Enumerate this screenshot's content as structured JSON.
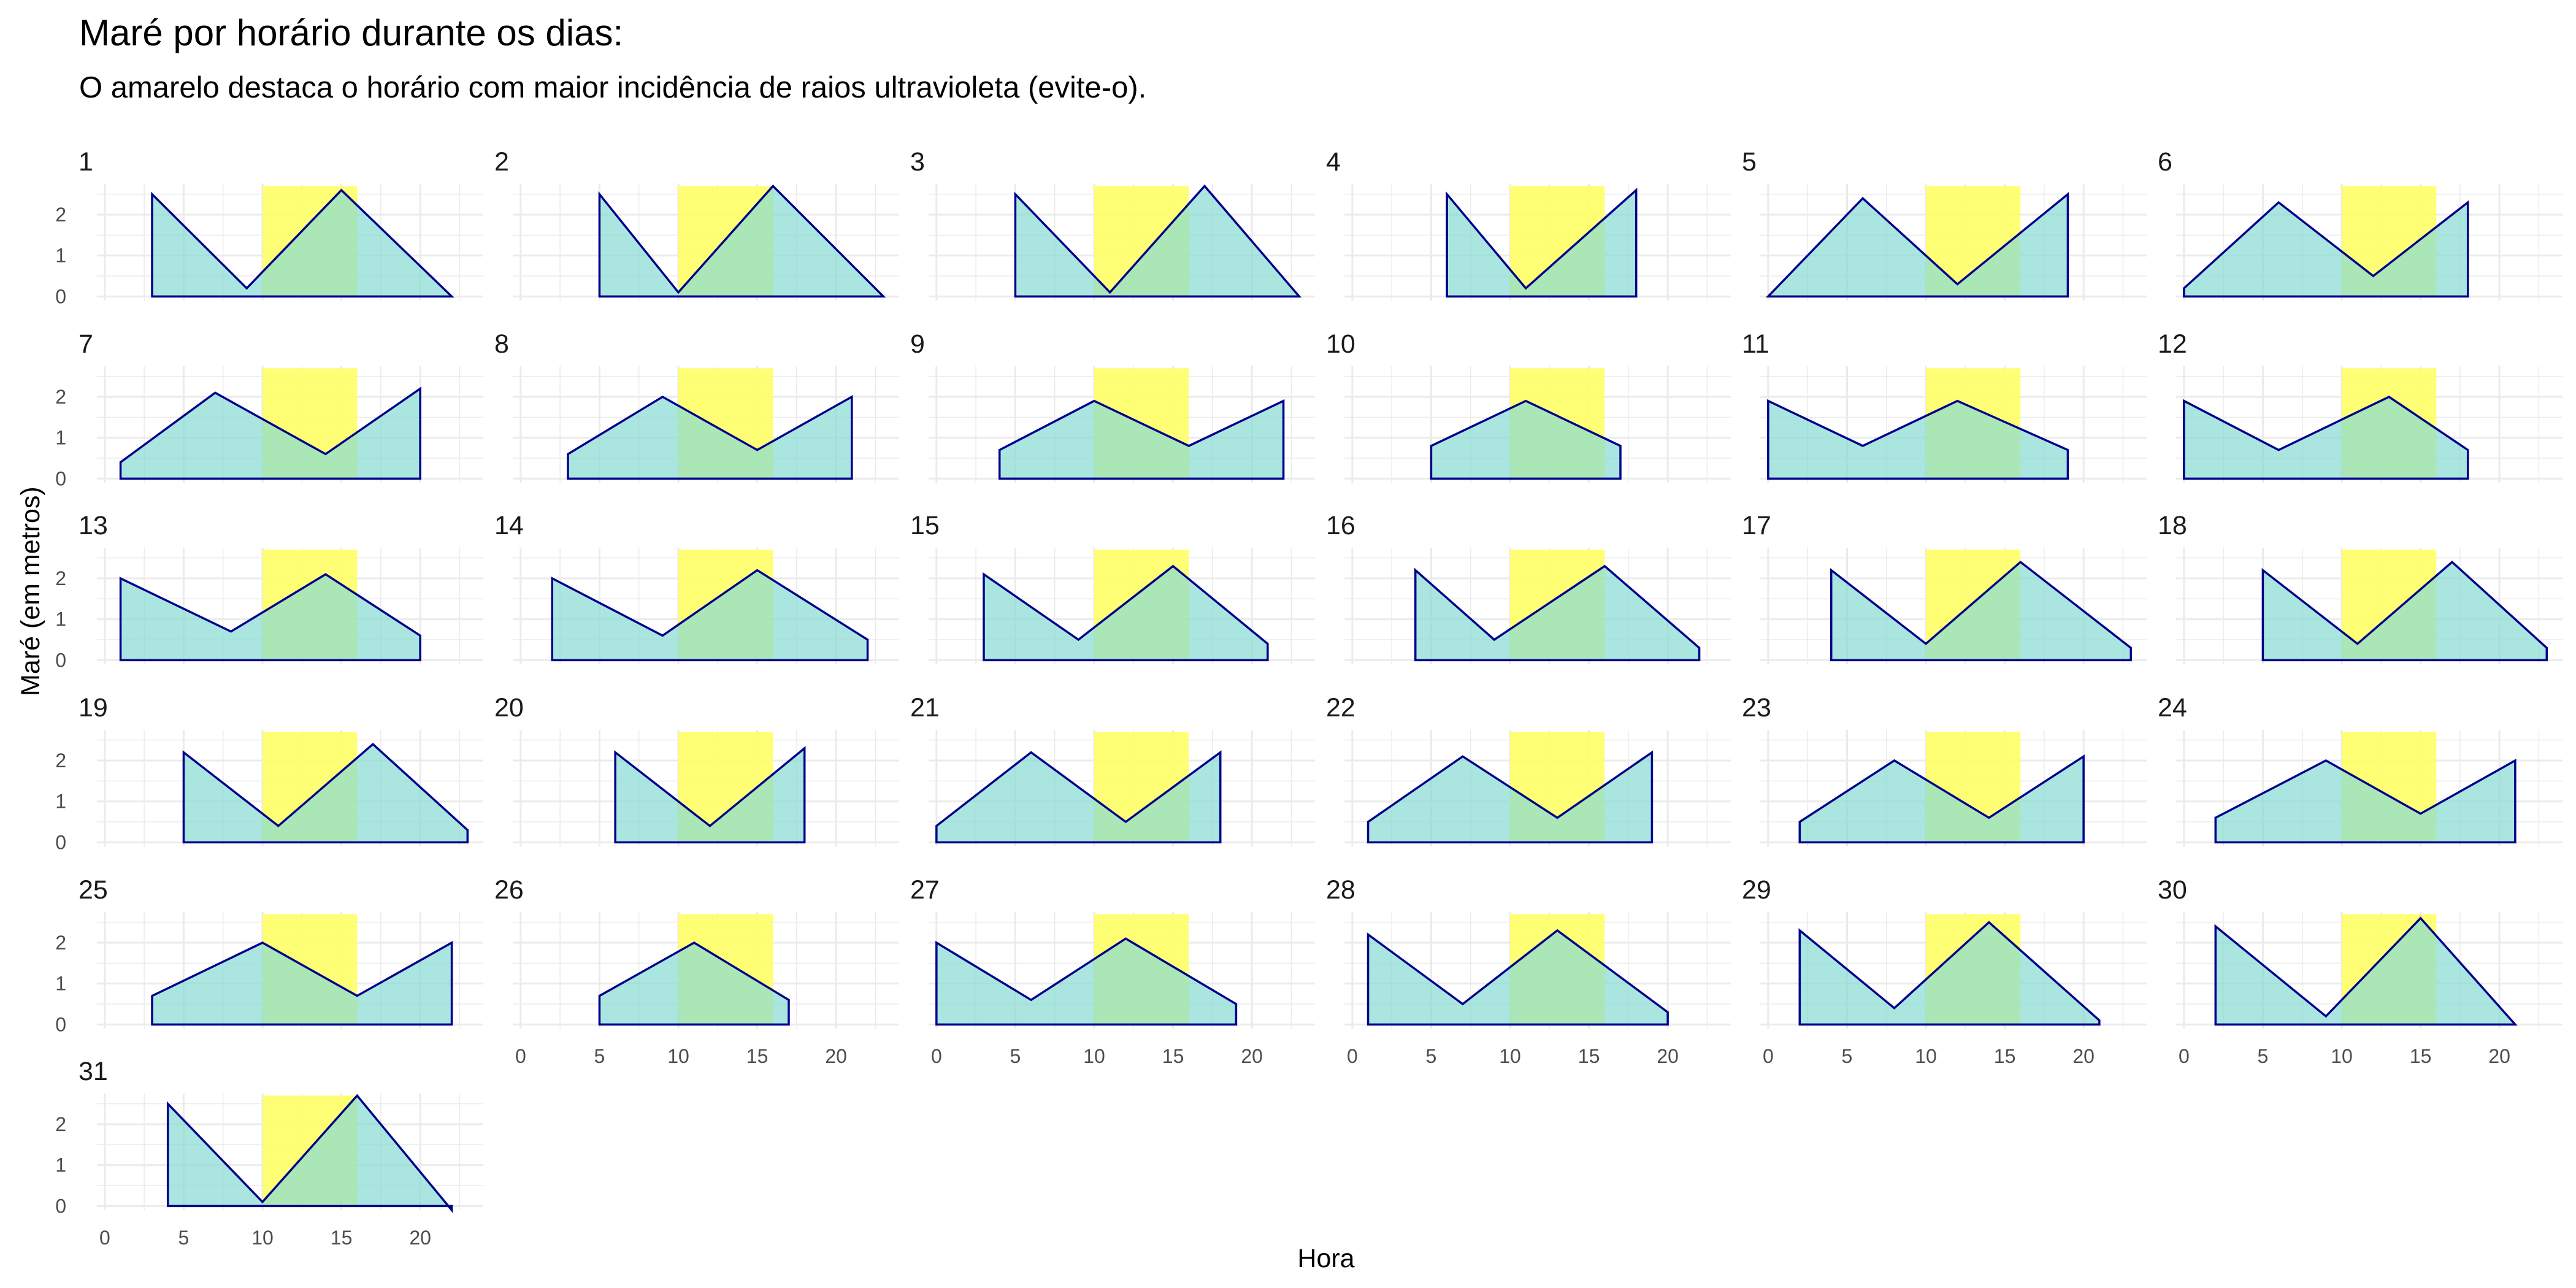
{
  "title": "Maré por horário durante os dias:",
  "subtitle": "O amarelo destaca o horário com maior incidência de raios ultravioleta (evite-o).",
  "colors": {
    "highlight": "#ffff66",
    "tide_fill": "#86dcd2",
    "tide_line": "#00008b",
    "grid": "#ebebeb"
  },
  "chart_data": {
    "type": "area",
    "facet_by": "day",
    "xlabel": "Hora",
    "ylabel": "Maré (em metros)",
    "xlim": [
      -0.5,
      24
    ],
    "ylim": [
      -0.1,
      2.75
    ],
    "x_ticks": [
      0,
      5,
      10,
      15,
      20
    ],
    "y_ticks": [
      0,
      1,
      2
    ],
    "highlight_band": {
      "from": 10,
      "to": 16
    },
    "panels": [
      {
        "day": "1",
        "x": [
          3,
          9,
          15,
          22
        ],
        "y": [
          2.5,
          0.2,
          2.6,
          0
        ]
      },
      {
        "day": "2",
        "x": [
          5,
          10,
          16,
          23
        ],
        "y": [
          2.5,
          0.1,
          2.7,
          0
        ]
      },
      {
        "day": "3",
        "x": [
          5,
          11,
          17,
          23
        ],
        "y": [
          2.5,
          0.1,
          2.7,
          0
        ]
      },
      {
        "day": "4",
        "x": [
          6,
          11,
          18
        ],
        "y": [
          2.5,
          0.2,
          2.6
        ]
      },
      {
        "day": "5",
        "x": [
          0,
          6,
          12,
          19
        ],
        "y": [
          0,
          2.4,
          0.3,
          2.5
        ]
      },
      {
        "day": "6",
        "x": [
          0,
          6,
          12,
          18
        ],
        "y": [
          0.2,
          2.3,
          0.5,
          2.3
        ]
      },
      {
        "day": "7",
        "x": [
          1,
          7,
          14,
          20
        ],
        "y": [
          0.4,
          2.1,
          0.6,
          2.2
        ]
      },
      {
        "day": "8",
        "x": [
          3,
          9,
          15,
          21
        ],
        "y": [
          0.6,
          2.0,
          0.7,
          2.0
        ]
      },
      {
        "day": "9",
        "x": [
          4,
          10,
          16,
          22
        ],
        "y": [
          0.7,
          1.9,
          0.8,
          1.9
        ]
      },
      {
        "day": "10",
        "x": [
          5,
          11,
          17
        ],
        "y": [
          0.8,
          1.9,
          0.8
        ]
      },
      {
        "day": "11",
        "x": [
          0,
          6,
          12,
          19
        ],
        "y": [
          1.9,
          0.8,
          1.9,
          0.7
        ]
      },
      {
        "day": "12",
        "x": [
          0,
          6,
          13,
          18
        ],
        "y": [
          1.9,
          0.7,
          2.0,
          0.7
        ]
      },
      {
        "day": "13",
        "x": [
          1,
          8,
          14,
          20
        ],
        "y": [
          2.0,
          0.7,
          2.1,
          0.6
        ]
      },
      {
        "day": "14",
        "x": [
          2,
          9,
          15,
          22
        ],
        "y": [
          2.0,
          0.6,
          2.2,
          0.5
        ]
      },
      {
        "day": "15",
        "x": [
          3,
          9,
          15,
          21
        ],
        "y": [
          2.1,
          0.5,
          2.3,
          0.4
        ]
      },
      {
        "day": "16",
        "x": [
          4,
          9,
          16,
          22
        ],
        "y": [
          2.2,
          0.5,
          2.3,
          0.3
        ]
      },
      {
        "day": "17",
        "x": [
          4,
          10,
          16,
          23
        ],
        "y": [
          2.2,
          0.4,
          2.4,
          0.3
        ]
      },
      {
        "day": "18",
        "x": [
          5,
          11,
          17,
          23
        ],
        "y": [
          2.2,
          0.4,
          2.4,
          0.3
        ]
      },
      {
        "day": "19",
        "x": [
          5,
          11,
          17,
          23
        ],
        "y": [
          2.2,
          0.4,
          2.4,
          0.3
        ]
      },
      {
        "day": "20",
        "x": [
          6,
          12,
          18
        ],
        "y": [
          2.2,
          0.4,
          2.3
        ]
      },
      {
        "day": "21",
        "x": [
          0,
          6,
          12,
          18
        ],
        "y": [
          0.4,
          2.2,
          0.5,
          2.2
        ]
      },
      {
        "day": "22",
        "x": [
          1,
          7,
          13,
          19
        ],
        "y": [
          0.5,
          2.1,
          0.6,
          2.2
        ]
      },
      {
        "day": "23",
        "x": [
          2,
          8,
          14,
          20
        ],
        "y": [
          0.5,
          2.0,
          0.6,
          2.1
        ]
      },
      {
        "day": "24",
        "x": [
          2,
          9,
          15,
          21
        ],
        "y": [
          0.6,
          2.0,
          0.7,
          2.0
        ]
      },
      {
        "day": "25",
        "x": [
          3,
          10,
          16,
          22
        ],
        "y": [
          0.7,
          2.0,
          0.7,
          2.0
        ]
      },
      {
        "day": "26",
        "x": [
          5,
          11,
          17
        ],
        "y": [
          0.7,
          2.0,
          0.6
        ]
      },
      {
        "day": "27",
        "x": [
          0,
          6,
          12,
          19
        ],
        "y": [
          2.0,
          0.6,
          2.1,
          0.5
        ]
      },
      {
        "day": "28",
        "x": [
          1,
          7,
          13,
          20
        ],
        "y": [
          2.2,
          0.5,
          2.3,
          0.3
        ]
      },
      {
        "day": "29",
        "x": [
          2,
          8,
          14,
          21
        ],
        "y": [
          2.3,
          0.4,
          2.5,
          0.1
        ]
      },
      {
        "day": "30",
        "x": [
          2,
          9,
          15,
          21
        ],
        "y": [
          2.4,
          0.2,
          2.6,
          0
        ]
      },
      {
        "day": "31",
        "x": [
          4,
          10,
          16,
          22
        ],
        "y": [
          2.5,
          0.1,
          2.7,
          -0.1
        ]
      }
    ]
  }
}
